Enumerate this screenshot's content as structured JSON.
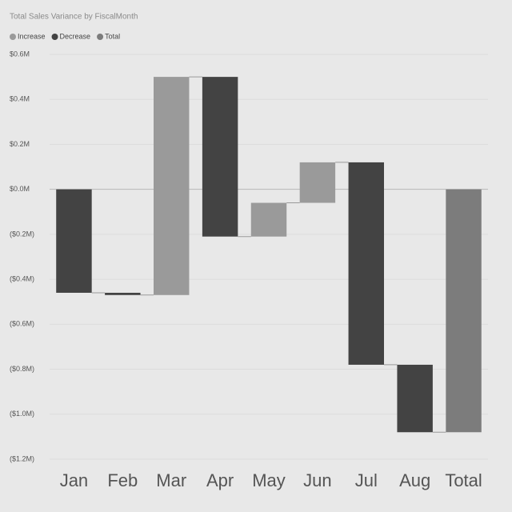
{
  "chart_data": {
    "type": "waterfall",
    "title": "Total Sales Variance by FiscalMonth",
    "legend": [
      {
        "name": "Increase",
        "color": "#9a9a9a"
      },
      {
        "name": "Decrease",
        "color": "#434343"
      },
      {
        "name": "Total",
        "color": "#7c7c7c"
      }
    ],
    "categories": [
      "Jan",
      "Feb",
      "Mar",
      "Apr",
      "May",
      "Jun",
      "Jul",
      "Aug",
      "Total"
    ],
    "values": [
      -0.46,
      -0.01,
      0.97,
      -0.71,
      0.15,
      0.18,
      -0.9,
      -0.3,
      -1.08
    ],
    "ylim": [
      -1.2,
      0.6
    ],
    "yticks": [
      {
        "value": 0.6,
        "label": "$0.6M"
      },
      {
        "value": 0.4,
        "label": "$0.4M"
      },
      {
        "value": 0.2,
        "label": "$0.2M"
      },
      {
        "value": 0,
        "label": "$0.0M"
      },
      {
        "value": -0.2,
        "label": "($0.2M)"
      },
      {
        "value": -0.4,
        "label": "($0.4M)"
      },
      {
        "value": -0.6,
        "label": "($0.6M)"
      },
      {
        "value": -0.8,
        "label": "($0.8M)"
      },
      {
        "value": -1.0,
        "label": "($1.0M)"
      },
      {
        "value": -1.2,
        "label": "($1.2M)"
      }
    ],
    "grid": true
  }
}
